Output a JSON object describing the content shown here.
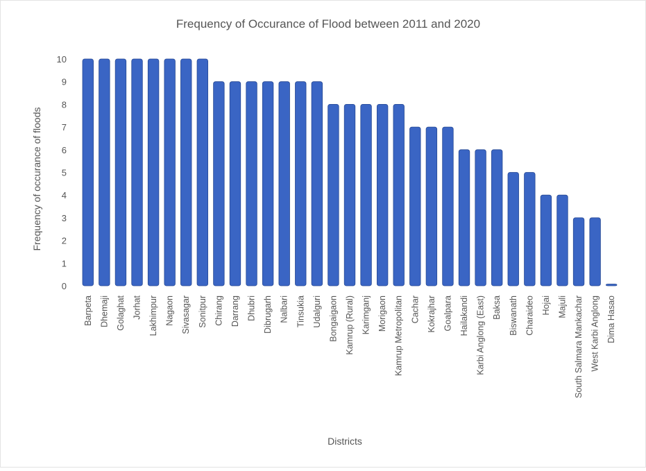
{
  "chart_data": {
    "type": "bar",
    "title": "Frequency of Occurance of Flood between 2011 and 2020",
    "xlabel": "Districts",
    "ylabel": "Frequency of occurance of floods",
    "ylim": [
      0,
      10
    ],
    "yticks": [
      "0",
      "1",
      "2",
      "3",
      "4",
      "5",
      "6",
      "7",
      "8",
      "9",
      "10"
    ],
    "grid": false,
    "bar_color": "#3a65c4",
    "bar_edge_color": "#284a94",
    "categories": [
      "Barpeta",
      "Dhemaji",
      "Golaghat",
      "Jorhat",
      "Lakhimpur",
      "Nagaon",
      "Sivasagar",
      "Sonitpur",
      "Chirang",
      "Darrang",
      "Dhubri",
      "Dibrugarh",
      "Nalbari",
      "Tinsukia",
      "Udalguri",
      "Bongaigaon",
      "Kamrup (Rural)",
      "Karimganj",
      "Morigaon",
      "Kamrup Metropolitan",
      "Cachar",
      "Kokrajhar",
      "Goalpara",
      "Hailakandi",
      "Karbi Anglong (East)",
      "Baksa",
      "Biswanath",
      "Charaideo",
      "Hojai",
      "Majuli",
      "South Salmara Mankachar",
      "West Karbi Anglong",
      "Dima Hasao"
    ],
    "values": [
      10,
      10,
      10,
      10,
      10,
      10,
      10,
      10,
      9,
      9,
      9,
      9,
      9,
      9,
      9,
      8,
      8,
      8,
      8,
      8,
      7,
      7,
      7,
      6,
      6,
      6,
      5,
      5,
      4,
      4,
      3,
      3,
      0
    ]
  }
}
